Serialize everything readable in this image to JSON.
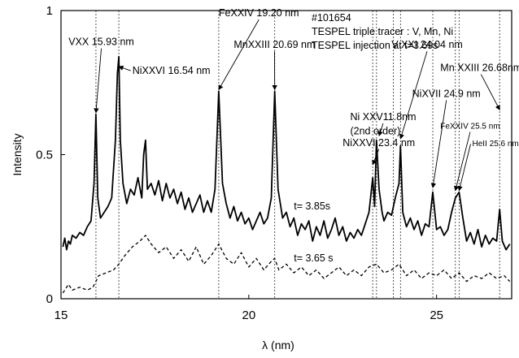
{
  "chart_data": {
    "type": "line",
    "title": "",
    "xlabel": "λ (nm)",
    "ylabel": "Intensity",
    "xlim": [
      15,
      27
    ],
    "ylim": [
      0,
      1
    ],
    "x_ticks": [
      15,
      20,
      25
    ],
    "y_ticks": [
      0,
      0.5,
      1
    ],
    "x_tick_labels": [
      "15",
      "20",
      "25"
    ],
    "y_tick_labels": [
      "0",
      "0.5",
      "1"
    ],
    "grid": false,
    "header_lines": [
      "#101654",
      "TESPEL triple tracer : V, Mn, Ni",
      "TESPEL injection at t=3.69s"
    ],
    "series": [
      {
        "name": "t= 3.85s",
        "line_style": "solid",
        "x": [
          15.05,
          15.1,
          15.15,
          15.2,
          15.25,
          15.3,
          15.4,
          15.5,
          15.6,
          15.7,
          15.8,
          15.88,
          15.93,
          15.98,
          16.05,
          16.15,
          16.25,
          16.35,
          16.45,
          16.5,
          16.54,
          16.58,
          16.65,
          16.75,
          16.85,
          16.95,
          17.05,
          17.15,
          17.2,
          17.25,
          17.3,
          17.4,
          17.5,
          17.6,
          17.7,
          17.8,
          17.9,
          18.0,
          18.1,
          18.2,
          18.3,
          18.4,
          18.5,
          18.6,
          18.7,
          18.8,
          18.9,
          19.0,
          19.1,
          19.2,
          19.3,
          19.4,
          19.5,
          19.6,
          19.7,
          19.8,
          19.9,
          20.0,
          20.1,
          20.2,
          20.3,
          20.4,
          20.5,
          20.6,
          20.69,
          20.78,
          20.9,
          21.0,
          21.1,
          21.2,
          21.3,
          21.4,
          21.5,
          21.6,
          21.7,
          21.8,
          21.9,
          22.0,
          22.1,
          22.2,
          22.3,
          22.4,
          22.5,
          22.6,
          22.7,
          22.8,
          22.9,
          23.0,
          23.1,
          23.2,
          23.3,
          23.35,
          23.4,
          23.47,
          23.55,
          23.6,
          23.7,
          23.8,
          23.9,
          24.0,
          24.04,
          24.1,
          24.2,
          24.3,
          24.4,
          24.5,
          24.6,
          24.7,
          24.8,
          24.9,
          25.0,
          25.1,
          25.2,
          25.3,
          25.4,
          25.5,
          25.6,
          25.7,
          25.8,
          25.9,
          26.0,
          26.1,
          26.2,
          26.3,
          26.4,
          26.5,
          26.6,
          26.68,
          26.75,
          26.85,
          26.95
        ],
        "values": [
          0.18,
          0.21,
          0.17,
          0.2,
          0.19,
          0.22,
          0.21,
          0.23,
          0.22,
          0.25,
          0.27,
          0.4,
          0.64,
          0.35,
          0.28,
          0.3,
          0.32,
          0.35,
          0.55,
          0.78,
          0.84,
          0.55,
          0.4,
          0.33,
          0.38,
          0.36,
          0.42,
          0.35,
          0.5,
          0.55,
          0.38,
          0.4,
          0.36,
          0.41,
          0.34,
          0.4,
          0.35,
          0.38,
          0.33,
          0.37,
          0.31,
          0.35,
          0.3,
          0.33,
          0.36,
          0.3,
          0.34,
          0.3,
          0.38,
          0.72,
          0.4,
          0.33,
          0.28,
          0.32,
          0.27,
          0.3,
          0.26,
          0.28,
          0.24,
          0.27,
          0.3,
          0.26,
          0.28,
          0.35,
          0.72,
          0.38,
          0.28,
          0.3,
          0.25,
          0.28,
          0.22,
          0.26,
          0.24,
          0.27,
          0.2,
          0.25,
          0.22,
          0.27,
          0.21,
          0.24,
          0.28,
          0.22,
          0.25,
          0.2,
          0.23,
          0.21,
          0.24,
          0.22,
          0.26,
          0.3,
          0.42,
          0.32,
          0.55,
          0.38,
          0.3,
          0.27,
          0.3,
          0.29,
          0.35,
          0.4,
          0.53,
          0.3,
          0.25,
          0.28,
          0.24,
          0.27,
          0.22,
          0.26,
          0.25,
          0.37,
          0.24,
          0.25,
          0.22,
          0.24,
          0.3,
          0.35,
          0.37,
          0.28,
          0.2,
          0.23,
          0.19,
          0.24,
          0.18,
          0.22,
          0.19,
          0.21,
          0.2,
          0.31,
          0.2,
          0.17,
          0.19
        ]
      },
      {
        "name": "t= 3.65 s",
        "line_style": "dashed",
        "x": [
          15.05,
          15.2,
          15.3,
          15.5,
          15.7,
          15.85,
          15.93,
          16.0,
          16.2,
          16.4,
          16.54,
          16.7,
          16.9,
          17.1,
          17.25,
          17.4,
          17.6,
          17.8,
          18.0,
          18.2,
          18.4,
          18.6,
          18.8,
          19.0,
          19.2,
          19.4,
          19.6,
          19.8,
          20.0,
          20.2,
          20.4,
          20.6,
          20.69,
          20.8,
          21.0,
          21.2,
          21.4,
          21.6,
          21.8,
          22.0,
          22.2,
          22.4,
          22.6,
          22.8,
          23.0,
          23.2,
          23.4,
          23.6,
          23.8,
          24.0,
          24.2,
          24.4,
          24.6,
          24.8,
          25.0,
          25.2,
          25.4,
          25.6,
          25.8,
          26.0,
          26.2,
          26.4,
          26.6,
          26.8,
          26.95
        ],
        "values": [
          0.02,
          0.05,
          0.03,
          0.04,
          0.03,
          0.04,
          0.06,
          0.08,
          0.09,
          0.1,
          0.12,
          0.15,
          0.18,
          0.2,
          0.22,
          0.19,
          0.16,
          0.18,
          0.14,
          0.17,
          0.13,
          0.18,
          0.12,
          0.15,
          0.19,
          0.14,
          0.12,
          0.16,
          0.11,
          0.14,
          0.1,
          0.13,
          0.14,
          0.1,
          0.12,
          0.09,
          0.11,
          0.08,
          0.1,
          0.07,
          0.09,
          0.11,
          0.08,
          0.1,
          0.08,
          0.11,
          0.12,
          0.09,
          0.1,
          0.12,
          0.08,
          0.1,
          0.07,
          0.09,
          0.08,
          0.1,
          0.07,
          0.09,
          0.06,
          0.08,
          0.07,
          0.09,
          0.07,
          0.08,
          0.06
        ]
      }
    ],
    "vlines": [
      15.93,
      16.54,
      19.2,
      20.69,
      23.3,
      23.4,
      23.85,
      24.04,
      24.9,
      25.5,
      25.6,
      26.68
    ],
    "annotations": [
      {
        "text": "VXX 15.93 nm",
        "x": 15.93,
        "y": 0.64,
        "tx": 15.2,
        "ty": 0.88,
        "size": "normal"
      },
      {
        "text": "NiXXVI 16.54 nm",
        "x": 16.54,
        "y": 0.8,
        "tx": 16.9,
        "ty": 0.78,
        "size": "normal"
      },
      {
        "text": "FeXXIV 19.20 nm",
        "x": 19.2,
        "y": 0.72,
        "tx": 19.2,
        "ty": 0.98,
        "size": "normal"
      },
      {
        "text": "MnXXIII 20.69 nm",
        "x": 20.69,
        "y": 0.72,
        "tx": 19.6,
        "ty": 0.87,
        "size": "normal"
      },
      {
        "text": "Ni XXV11.8nm",
        "x": 23.47,
        "y": 0.56,
        "tx": 22.7,
        "ty": 0.62,
        "size": "normal"
      },
      {
        "text": "(2nd order)",
        "x": null,
        "y": null,
        "tx": 22.7,
        "ty": 0.57,
        "size": "normal"
      },
      {
        "text": "NiXXVI 23.4 nm",
        "x": 23.3,
        "y": 0.46,
        "tx": 22.5,
        "ty": 0.53,
        "size": "normal"
      },
      {
        "text": "V XXI  24.04 nm",
        "x": 24.04,
        "y": 0.55,
        "tx": 23.8,
        "ty": 0.87,
        "size": "normal"
      },
      {
        "text": "NiXVII 24.9 nm",
        "x": 24.9,
        "y": 0.38,
        "tx": 24.35,
        "ty": 0.7,
        "size": "normal"
      },
      {
        "text": "Mn XXIII 26.68nm",
        "x": 26.68,
        "y": 0.65,
        "tx": 25.1,
        "ty": 0.79,
        "size": "normal"
      },
      {
        "text": "FeXXIV 25.5 nm",
        "x": 25.5,
        "y": 0.37,
        "tx": 25.1,
        "ty": 0.59,
        "size": "small"
      },
      {
        "text": "HeII 25.6 nm",
        "x": 25.6,
        "y": 0.37,
        "tx": 25.95,
        "ty": 0.53,
        "size": "small"
      }
    ],
    "series_labels": [
      {
        "text": "t= 3.85s",
        "tx": 21.2,
        "ty": 0.31
      },
      {
        "text": "t= 3.65 s",
        "tx": 21.2,
        "ty": 0.13
      }
    ]
  }
}
